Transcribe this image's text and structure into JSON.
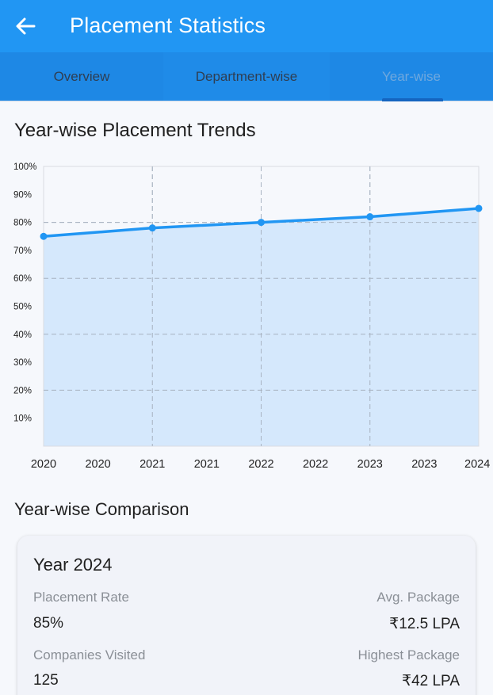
{
  "appbar": {
    "title": "Placement Statistics",
    "back_icon": "arrow-left-icon"
  },
  "tabs": [
    {
      "label": "Overview"
    },
    {
      "label": "Department-wise"
    },
    {
      "label": "Year-wise",
      "selected": true
    }
  ],
  "trends_section": {
    "title": "Year-wise Placement Trends"
  },
  "chart_data": {
    "type": "line",
    "title": "",
    "xlabel": "",
    "ylabel": "",
    "x_tick_labels": [
      "2020",
      "2020",
      "2021",
      "2021",
      "2022",
      "2022",
      "2023",
      "2023",
      "2024"
    ],
    "y_tick_labels": [
      "10%",
      "20%",
      "30%",
      "40%",
      "50%",
      "60%",
      "70%",
      "80%",
      "90%",
      "100%"
    ],
    "x": [
      2020,
      2021,
      2022,
      2023,
      2024
    ],
    "series": [
      {
        "values": [
          75,
          78,
          80,
          82,
          85
        ]
      }
    ],
    "xlim": [
      2020,
      2024
    ],
    "ylim": [
      0,
      100
    ],
    "area_fill": true,
    "grid": true,
    "line_color": "#2196f3",
    "fill_color": "#cfe5fb"
  },
  "comparison_section": {
    "title": "Year-wise Comparison"
  },
  "card": {
    "year_label": "Year 2024",
    "placement_rate_label": "Placement Rate",
    "placement_rate_value": "85%",
    "avg_package_label": "Avg. Package",
    "avg_package_value": "₹12.5 LPA",
    "companies_label": "Companies Visited",
    "companies_value": "125",
    "highest_package_label": "Highest Package",
    "highest_package_value": "₹42 LPA"
  }
}
